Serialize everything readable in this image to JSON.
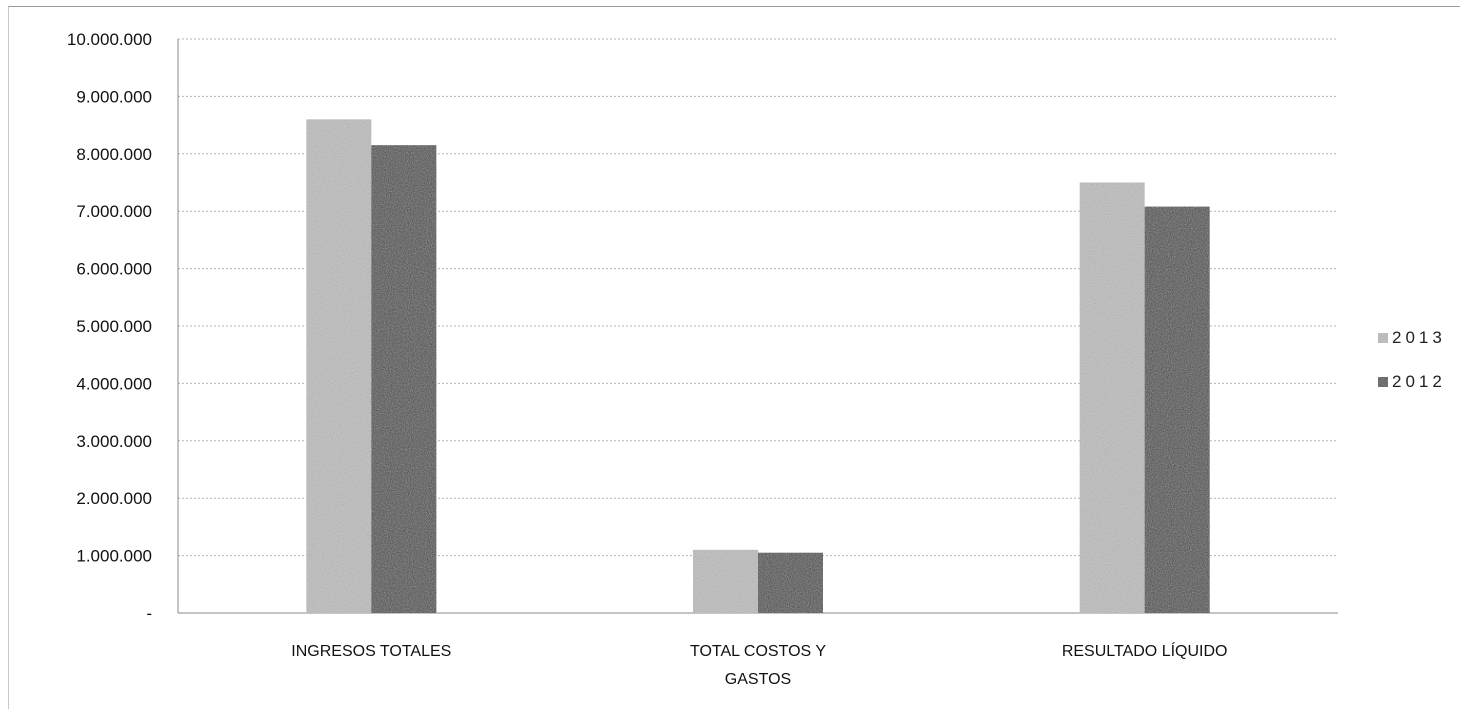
{
  "chart_data": {
    "type": "bar",
    "categories": [
      "INGRESOS TOTALES",
      "TOTAL COSTOS Y GASTOS",
      "RESULTADO LÍQUIDO"
    ],
    "category_lines": [
      [
        "INGRESOS TOTALES"
      ],
      [
        "TOTAL COSTOS Y",
        "GASTOS"
      ],
      [
        "RESULTADO LÍQUIDO"
      ]
    ],
    "series": [
      {
        "name": "2013",
        "values": [
          8600000,
          1100000,
          7500000
        ],
        "color": "#c9c9c9"
      },
      {
        "name": "2012",
        "values": [
          8150000,
          1050000,
          7080000
        ],
        "color": "#3a3a3a"
      }
    ],
    "ylim": [
      0,
      10000000
    ],
    "yticks": [
      0,
      1000000,
      2000000,
      3000000,
      4000000,
      5000000,
      6000000,
      7000000,
      8000000,
      9000000,
      10000000
    ],
    "ytick_labels": [
      "-",
      "1.000.000",
      "2.000.000",
      "3.000.000",
      "4.000.000",
      "5.000.000",
      "6.000.000",
      "7.000.000",
      "8.000.000",
      "9.000.000",
      "10.000.000"
    ],
    "grid": true,
    "legend_position": "right",
    "title": "",
    "xlabel": "",
    "ylabel": ""
  }
}
